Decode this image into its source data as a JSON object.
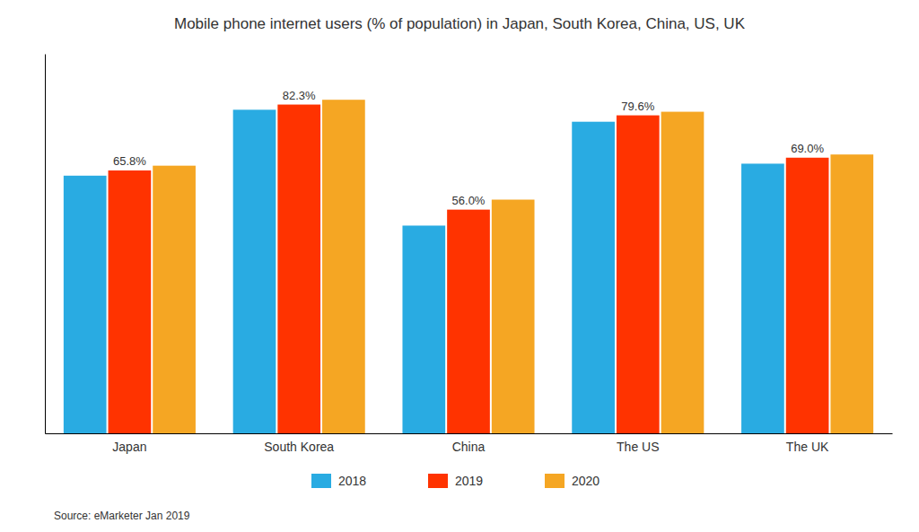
{
  "chart_data": {
    "type": "bar",
    "title": "Mobile phone internet users (% of population) in Japan, South Korea, China, US, UK",
    "categories": [
      "Japan",
      "South Korea",
      "China",
      "The US",
      "The UK"
    ],
    "series": [
      {
        "name": "2018",
        "color": "#29ABE2",
        "values": [
          64.5,
          81.0,
          52.0,
          78.0,
          67.5
        ]
      },
      {
        "name": "2019",
        "color": "#FF3300",
        "values": [
          65.8,
          82.3,
          56.0,
          79.6,
          69.0
        ],
        "data_labels": true,
        "value_labels": [
          "65.8%",
          "82.3%",
          "56.0%",
          "79.6%",
          "69.0%"
        ]
      },
      {
        "name": "2020",
        "color": "#F5A623",
        "values": [
          67.0,
          83.5,
          58.5,
          80.5,
          69.8
        ]
      }
    ],
    "ylim": [
      0,
      95
    ],
    "tick_labels": "x",
    "grid": false,
    "legend": "bottom",
    "annotations": [
      "Source: eMarketer Jan 2019"
    ]
  }
}
